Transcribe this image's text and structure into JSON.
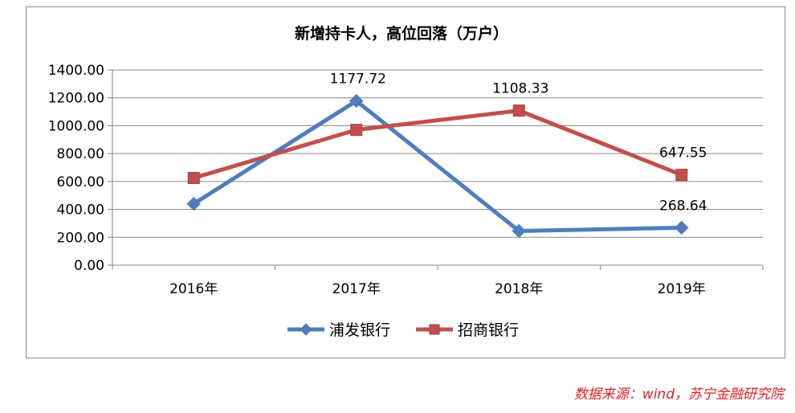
{
  "chart_data": {
    "type": "line",
    "title": "新增持卡人，高位回落（万户）",
    "xlabel": "",
    "ylabel": "",
    "categories": [
      "2016年",
      "2017年",
      "2018年",
      "2019年"
    ],
    "ylim": [
      0,
      1400
    ],
    "yticks": [
      "0.00",
      "200.00",
      "400.00",
      "600.00",
      "800.00",
      "1000.00",
      "1200.00",
      "1400.00"
    ],
    "grid": true,
    "legend": "bottom",
    "series": [
      {
        "name": "浦发银行",
        "values": [
          440,
          1177.72,
          245,
          268.64
        ],
        "labels": [
          "",
          "1177.72",
          "",
          "268.64"
        ],
        "color": "#4f7ebd",
        "marker": "diamond"
      },
      {
        "name": "招商银行",
        "values": [
          625,
          970,
          1108.33,
          647.55
        ],
        "labels": [
          "",
          "",
          "1108.33",
          "647.55"
        ],
        "color": "#c0504d",
        "marker": "square"
      }
    ]
  },
  "source_note": "数据来源：wind，苏宁金融研究院"
}
